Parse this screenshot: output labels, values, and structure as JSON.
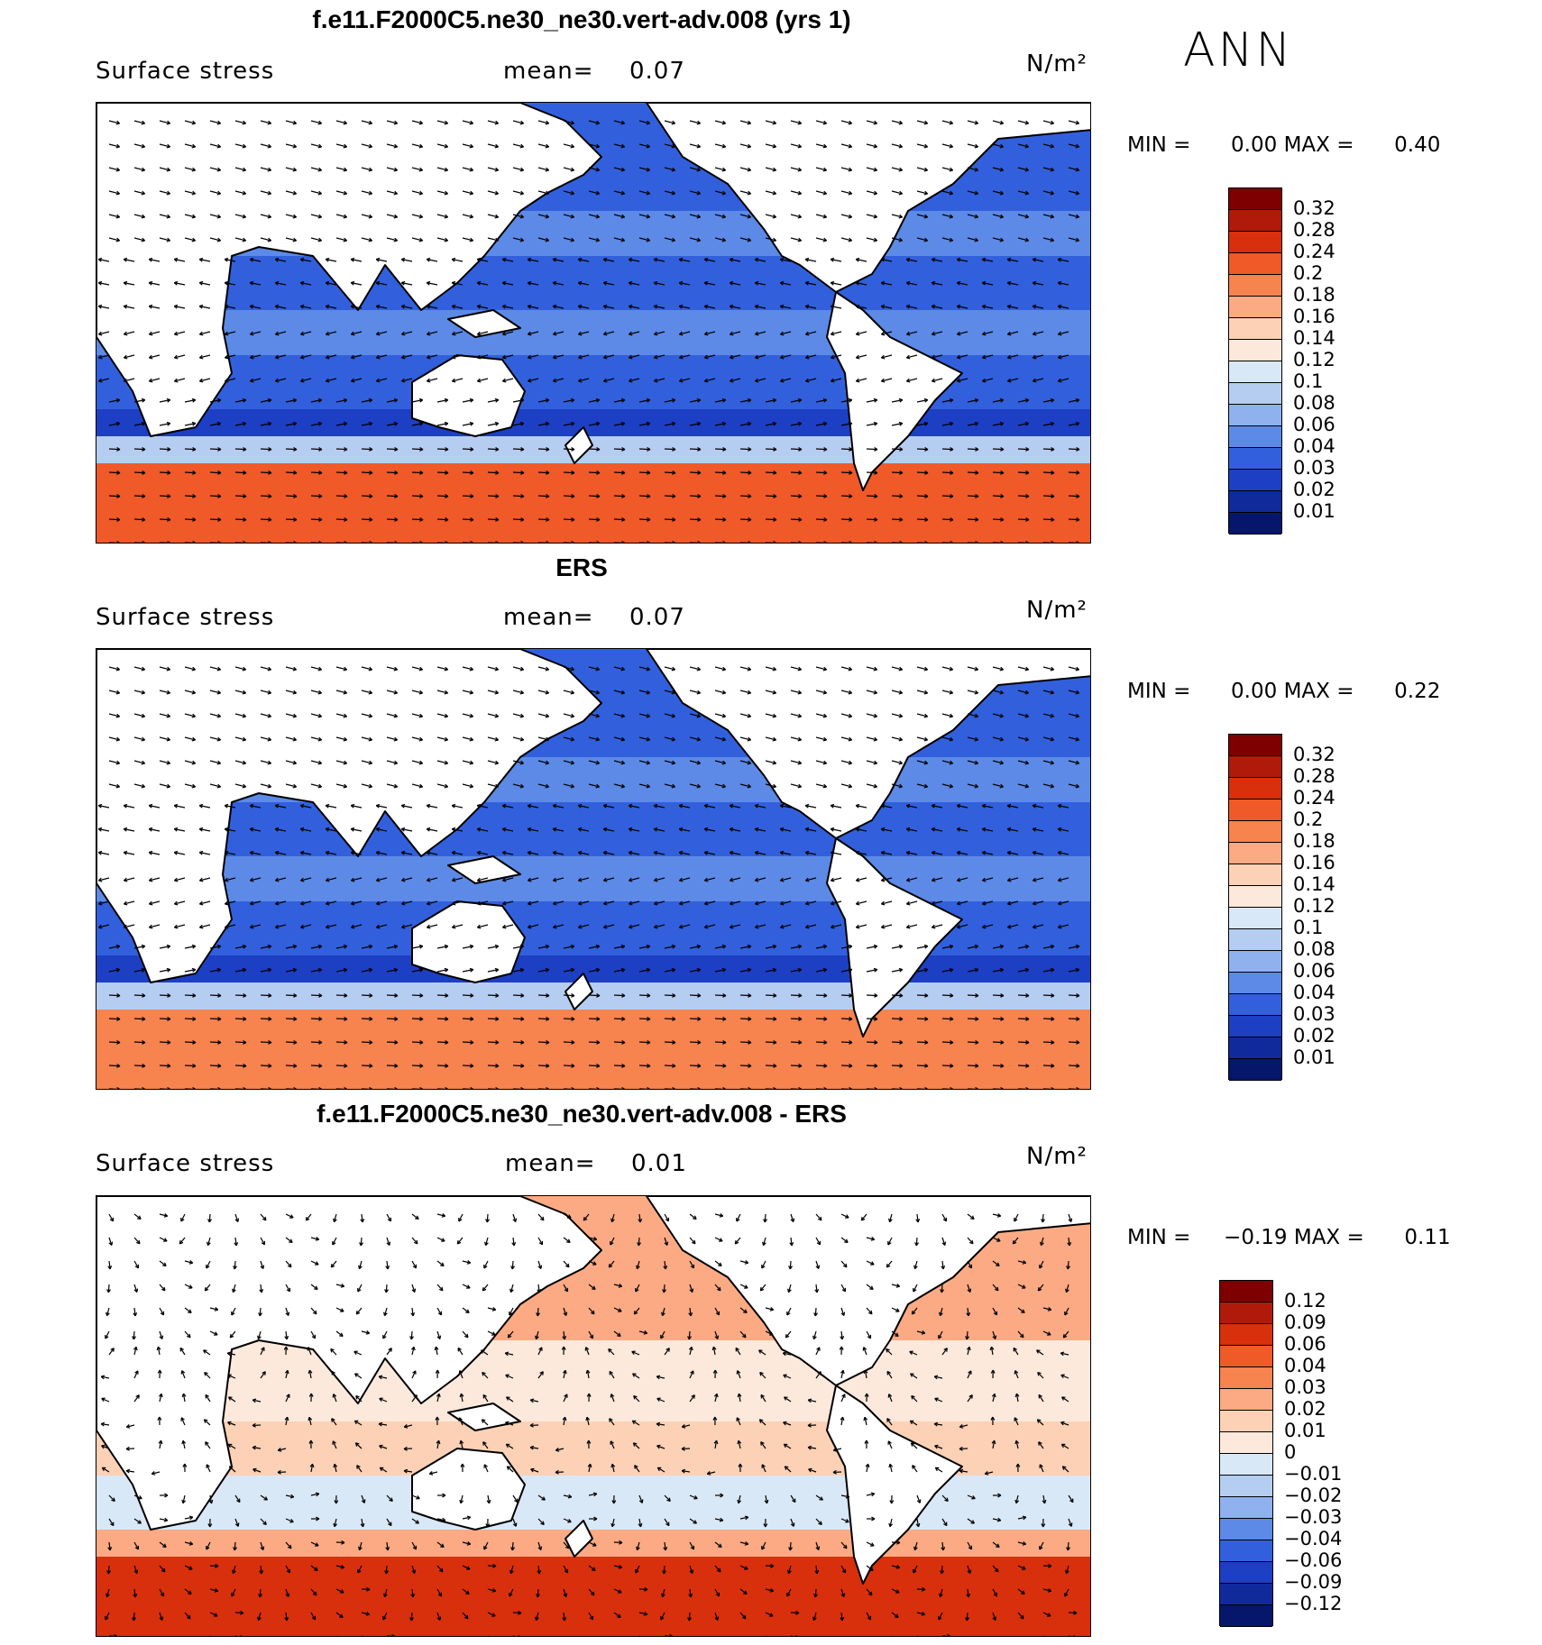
{
  "season": "ANN",
  "panels": [
    {
      "title": "f.e11.F2000C5.ne30_ne30.vert-adv.008 (yrs 1)",
      "field": "Surface stress",
      "mean_label": "mean=",
      "mean": "0.07",
      "units": "N/m²",
      "min_label": "MIN =",
      "min": "0.00",
      "max_label": "MAX =",
      "max": "0.40",
      "colorbar": {
        "levels": [
          "0.32",
          "0.28",
          "0.24",
          "0.2",
          "0.18",
          "0.16",
          "0.14",
          "0.12",
          "0.1",
          "0.08",
          "0.06",
          "0.04",
          "0.03",
          "0.02",
          "0.01"
        ],
        "colors": [
          "#7f0000",
          "#b01a0a",
          "#d8300c",
          "#f05a28",
          "#f7834f",
          "#fbaa84",
          "#fcd1b5",
          "#fde9dc",
          "#d9e8f7",
          "#b6cdf2",
          "#8fb1ee",
          "#5c8ae6",
          "#3260dc",
          "#1d3fc4",
          "#102a9c",
          "#06166a"
        ]
      }
    },
    {
      "title": "ERS",
      "field": "Surface stress",
      "mean_label": "mean=",
      "mean": "0.07",
      "units": "N/m²",
      "min_label": "MIN =",
      "min": "0.00",
      "max_label": "MAX =",
      "max": "0.22",
      "colorbar": {
        "levels": [
          "0.32",
          "0.28",
          "0.24",
          "0.2",
          "0.18",
          "0.16",
          "0.14",
          "0.12",
          "0.1",
          "0.08",
          "0.06",
          "0.04",
          "0.03",
          "0.02",
          "0.01"
        ],
        "colors": [
          "#7f0000",
          "#b01a0a",
          "#d8300c",
          "#f05a28",
          "#f7834f",
          "#fbaa84",
          "#fcd1b5",
          "#fde9dc",
          "#d9e8f7",
          "#b6cdf2",
          "#8fb1ee",
          "#5c8ae6",
          "#3260dc",
          "#1d3fc4",
          "#102a9c",
          "#06166a"
        ]
      }
    },
    {
      "title": "f.e11.F2000C5.ne30_ne30.vert-adv.008 - ERS",
      "field": "Surface stress",
      "mean_label": "mean=",
      "mean": "0.01",
      "units": "N/m²",
      "min_label": "MIN =",
      "min": "−0.19",
      "max_label": "MAX =",
      "max": "0.11",
      "colorbar": {
        "levels": [
          "0.12",
          "0.09",
          "0.06",
          "0.04",
          "0.03",
          "0.02",
          "0.01",
          "0",
          "−0.01",
          "−0.02",
          "−0.03",
          "−0.04",
          "−0.06",
          "−0.09",
          "−0.12"
        ],
        "colors": [
          "#7f0000",
          "#b01a0a",
          "#d8300c",
          "#f05a28",
          "#f7834f",
          "#fbaa84",
          "#fcd1b5",
          "#fde9dc",
          "#d9e8f7",
          "#b6cdf2",
          "#8fb1ee",
          "#5c8ae6",
          "#3260dc",
          "#1d3fc4",
          "#102a9c",
          "#06166a"
        ]
      }
    }
  ]
}
